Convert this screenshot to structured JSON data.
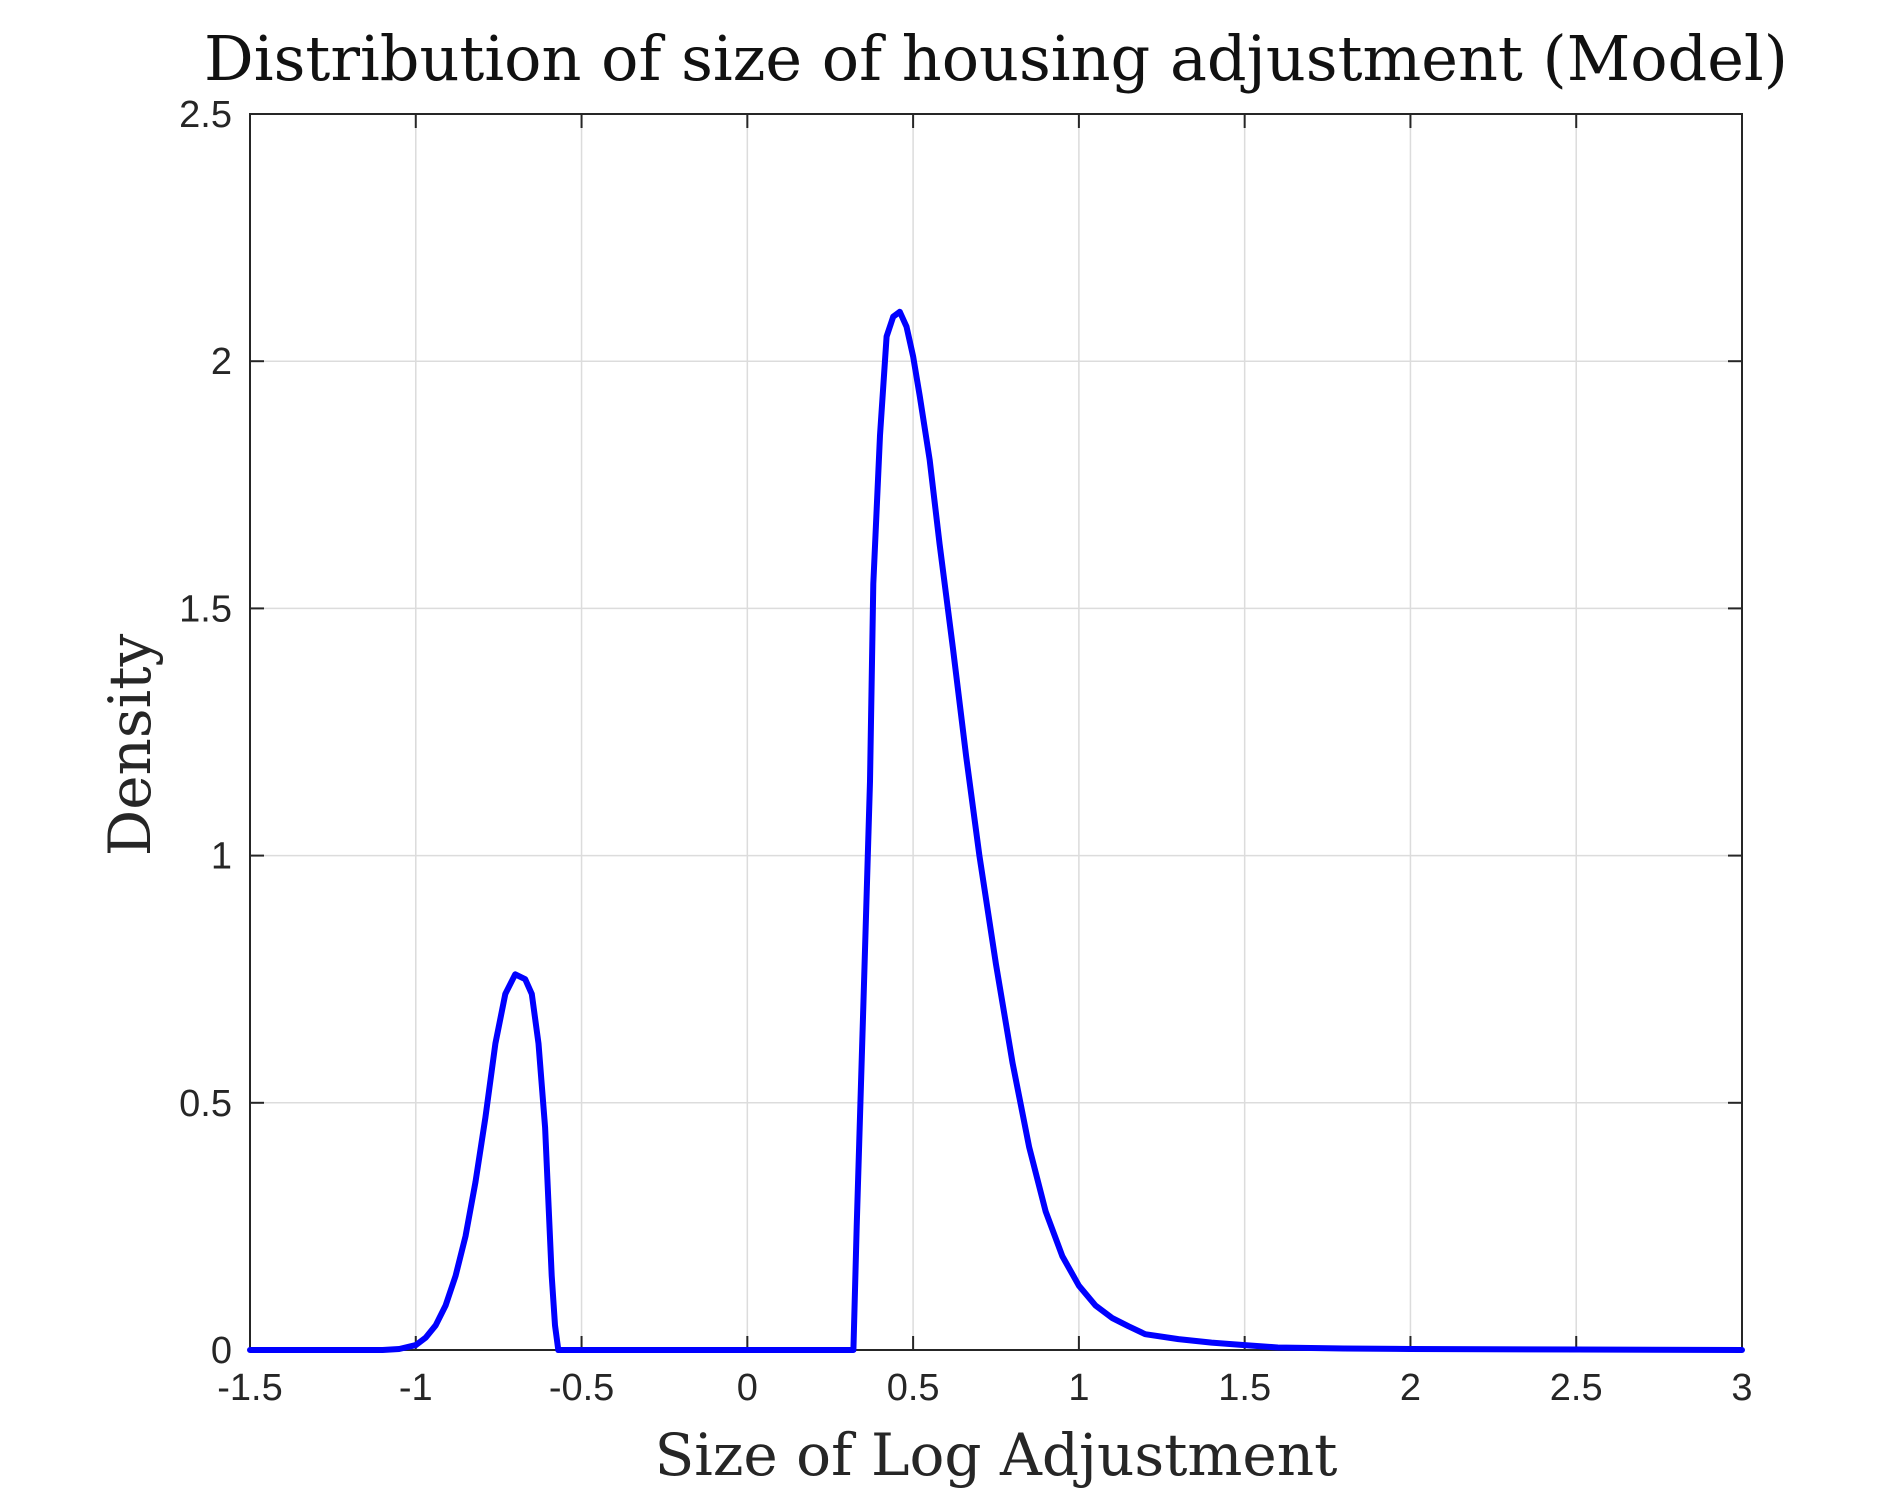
{
  "chart_data": {
    "type": "line",
    "title": "Distribution of size of housing adjustment (Model)",
    "xlabel": "Size of Log Adjustment",
    "ylabel": "Density",
    "xlim": [
      -1.5,
      3
    ],
    "ylim": [
      0,
      2.5
    ],
    "xticks": [
      -1.5,
      -1,
      -0.5,
      0,
      0.5,
      1,
      1.5,
      2,
      2.5,
      3
    ],
    "xtick_labels": [
      "-1.5",
      "-1",
      "-0.5",
      "0",
      "0.5",
      "1",
      "1.5",
      "2",
      "2.5",
      "3"
    ],
    "yticks": [
      0,
      0.5,
      1,
      1.5,
      2,
      2.5
    ],
    "ytick_labels": [
      "0",
      "0.5",
      "1",
      "1.5",
      "2",
      "2.5"
    ],
    "grid": true,
    "legend": "none",
    "series": [
      {
        "color": "#0000ff",
        "x": [
          -1.5,
          -1.2,
          -1.1,
          -1.05,
          -1.0,
          -0.97,
          -0.94,
          -0.91,
          -0.88,
          -0.85,
          -0.82,
          -0.79,
          -0.76,
          -0.73,
          -0.7,
          -0.67,
          -0.65,
          -0.63,
          -0.61,
          -0.6,
          -0.59,
          -0.58,
          -0.57,
          -0.56,
          -0.55,
          -0.53,
          -0.52,
          -0.5,
          0.0,
          0.32,
          0.33,
          0.35,
          0.37,
          0.38,
          0.4,
          0.42,
          0.44,
          0.46,
          0.48,
          0.5,
          0.52,
          0.55,
          0.58,
          0.62,
          0.66,
          0.7,
          0.75,
          0.8,
          0.85,
          0.9,
          0.95,
          1.0,
          1.05,
          1.1,
          1.15,
          1.2,
          1.3,
          1.4,
          1.5,
          1.6,
          1.8,
          2.0,
          2.5,
          3.0
        ],
        "y": [
          0.0,
          0.0,
          0.0,
          0.002,
          0.01,
          0.025,
          0.05,
          0.09,
          0.15,
          0.23,
          0.34,
          0.47,
          0.62,
          0.72,
          0.76,
          0.75,
          0.72,
          0.62,
          0.45,
          0.3,
          0.15,
          0.05,
          0.0,
          0.0,
          0.0,
          0.0,
          0.0,
          0.0,
          0.0,
          0.0,
          0.25,
          0.7,
          1.15,
          1.55,
          1.85,
          2.05,
          2.09,
          2.1,
          2.07,
          2.01,
          1.93,
          1.8,
          1.63,
          1.42,
          1.2,
          1.0,
          0.78,
          0.58,
          0.41,
          0.28,
          0.19,
          0.13,
          0.09,
          0.065,
          0.048,
          0.032,
          0.022,
          0.015,
          0.01,
          0.005,
          0.003,
          0.002,
          0.001,
          0.0
        ]
      }
    ]
  }
}
